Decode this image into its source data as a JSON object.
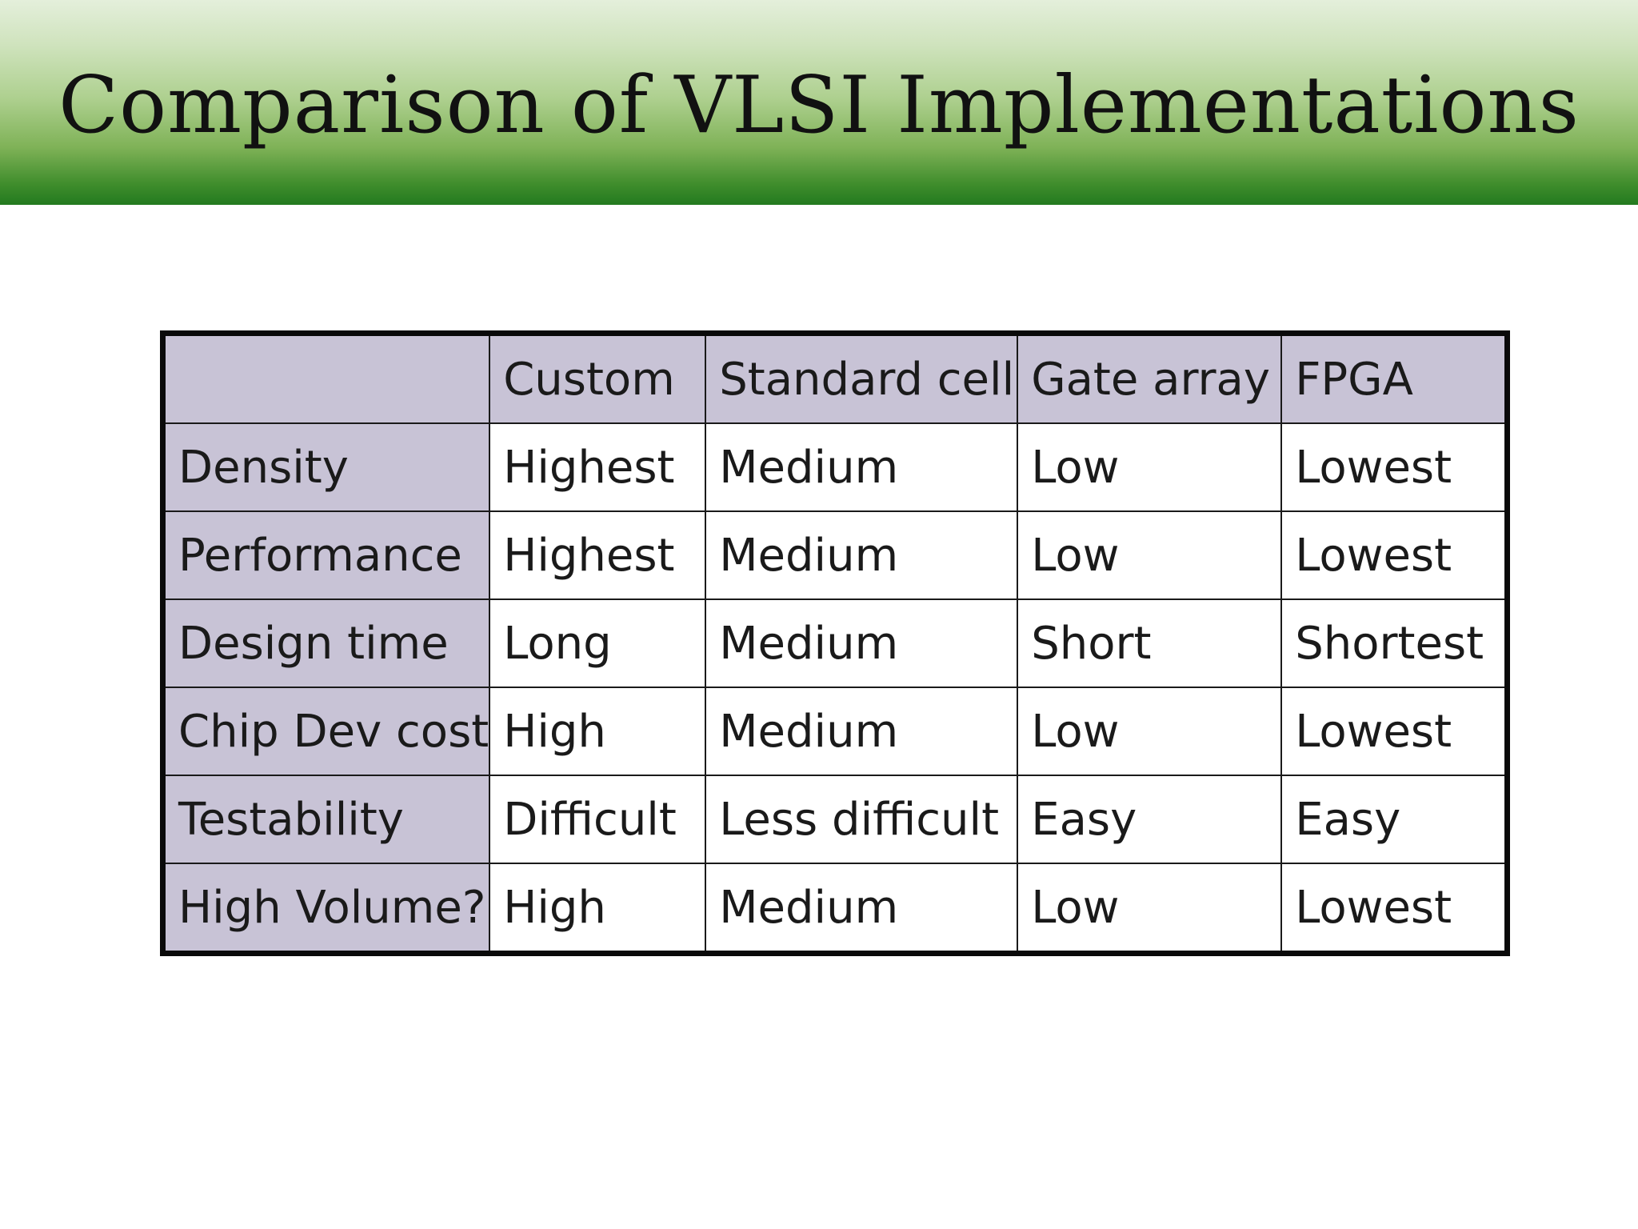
{
  "slide": {
    "title": "Comparison of VLSI Implementations"
  },
  "table": {
    "corner": "",
    "columns": [
      "Custom",
      "Standard cell",
      "Gate array",
      "FPGA"
    ],
    "rows": [
      {
        "label": "Density",
        "cells": [
          "Highest",
          "Medium",
          "Low",
          "Lowest"
        ]
      },
      {
        "label": "Performance",
        "cells": [
          "Highest",
          "Medium",
          "Low",
          "Lowest"
        ]
      },
      {
        "label": "Design time",
        "cells": [
          "Long",
          "Medium",
          "Short",
          "Shortest"
        ]
      },
      {
        "label": "Chip Dev cost",
        "cells": [
          "High",
          "Medium",
          "Low",
          "Lowest"
        ]
      },
      {
        "label": "Testability",
        "cells": [
          "Difficult",
          "Less difficult",
          "Easy",
          "Easy"
        ]
      },
      {
        "label": "High Volume?",
        "cells": [
          "High",
          "Medium",
          "Low",
          "Lowest"
        ]
      }
    ]
  },
  "colors": {
    "header_fill": "#c8c3d6",
    "title_bar_top": "#e4efdb",
    "title_bar_bottom": "#237a1f",
    "border": "#0a0a0a"
  }
}
